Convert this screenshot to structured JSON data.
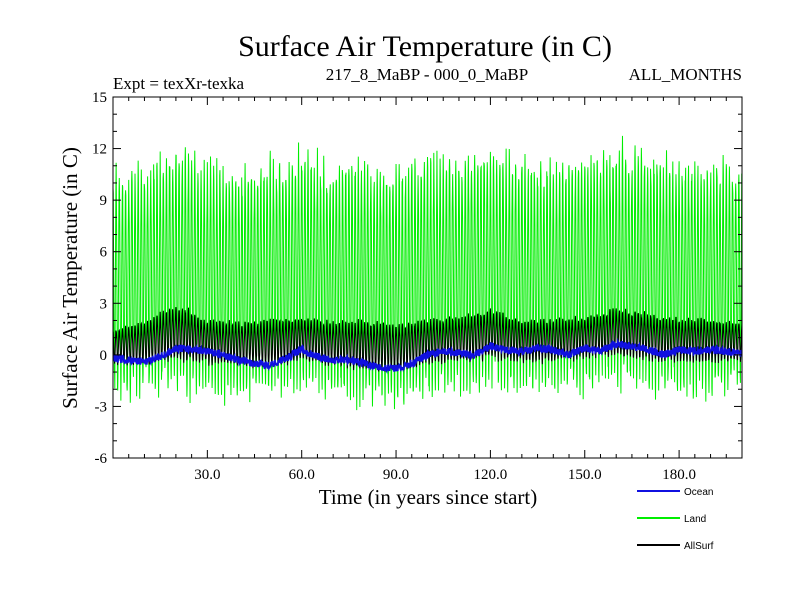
{
  "chart_data": {
    "type": "line",
    "title": "Surface Air Temperature (in C)",
    "subtitle_left": "Expt = texXr-texka",
    "subtitle_center": "217_8_MaBP - 000_0_MaBP",
    "subtitle_right": "ALL_MONTHS",
    "xlabel": "Time (in years since start)",
    "ylabel": "Surface Air Temperature (in C)",
    "xlim": [
      0,
      200
    ],
    "ylim": [
      -6,
      15
    ],
    "x_ticks": [
      30,
      60,
      90,
      120,
      150,
      180
    ],
    "x_tick_labels": [
      "30.0",
      "60.0",
      "90.0",
      "120.0",
      "150.0",
      "180.0"
    ],
    "y_ticks": [
      -6,
      -3,
      0,
      3,
      6,
      9,
      12,
      15
    ],
    "y_tick_labels": [
      "-6",
      "-3",
      "0",
      "3",
      "6",
      "9",
      "12",
      "15"
    ],
    "legend": {
      "position": "bottom-right",
      "entries": [
        {
          "name": "Ocean",
          "color": "#1010e0"
        },
        {
          "name": "Land",
          "color": "#00ee00"
        },
        {
          "name": "AllSurf",
          "color": "#000000"
        }
      ]
    },
    "series": [
      {
        "name": "Land",
        "color": "#00ee00",
        "description": "monthly series, seasonal cycle",
        "x_annual": [
          0,
          10,
          20,
          30,
          40,
          50,
          60,
          70,
          80,
          90,
          100,
          110,
          120,
          130,
          140,
          150,
          160,
          170,
          180,
          190,
          200
        ],
        "annual_max": [
          10.5,
          11.0,
          12.0,
          11.2,
          10.8,
          11.3,
          11.8,
          11.0,
          11.4,
          10.9,
          11.6,
          11.5,
          12.0,
          11.2,
          11.0,
          11.4,
          12.0,
          11.8,
          11.3,
          11.2,
          10.8
        ],
        "annual_min": [
          -2.2,
          -2.5,
          -2.0,
          -2.4,
          -2.6,
          -2.3,
          -2.0,
          -2.4,
          -2.8,
          -3.1,
          -2.5,
          -2.1,
          -2.0,
          -2.3,
          -2.2,
          -1.8,
          -1.7,
          -2.0,
          -2.2,
          -2.4,
          -2.0
        ]
      },
      {
        "name": "AllSurf",
        "color": "#000000",
        "description": "monthly series, seasonal cycle",
        "x_annual": [
          0,
          10,
          20,
          30,
          40,
          50,
          60,
          70,
          80,
          90,
          100,
          110,
          120,
          130,
          140,
          150,
          160,
          170,
          180,
          190,
          200
        ],
        "annual_max": [
          1.5,
          1.9,
          2.9,
          2.1,
          1.9,
          2.1,
          2.2,
          1.9,
          2.0,
          1.8,
          2.1,
          2.2,
          2.6,
          2.0,
          2.1,
          2.2,
          2.7,
          2.4,
          2.1,
          2.1,
          1.9
        ],
        "annual_min": [
          -0.5,
          -0.6,
          -0.3,
          -0.5,
          -0.6,
          -0.7,
          -0.3,
          -0.6,
          -0.9,
          -1.0,
          -0.6,
          -0.4,
          -0.2,
          -0.5,
          -0.4,
          -0.2,
          -0.1,
          -0.3,
          -0.4,
          -0.5,
          -0.3
        ]
      },
      {
        "name": "Ocean",
        "color": "#1010e0",
        "description": "monthly series",
        "x": [
          0,
          5,
          10,
          15,
          20,
          25,
          30,
          35,
          40,
          45,
          50,
          55,
          60,
          65,
          70,
          75,
          80,
          85,
          90,
          95,
          100,
          105,
          110,
          115,
          120,
          125,
          130,
          135,
          140,
          145,
          150,
          155,
          160,
          165,
          170,
          175,
          180,
          185,
          190,
          195,
          200
        ],
        "y": [
          -0.2,
          -0.3,
          -0.4,
          -0.1,
          0.4,
          0.3,
          0.2,
          0.0,
          -0.3,
          -0.5,
          -0.6,
          -0.2,
          0.3,
          -0.1,
          -0.3,
          -0.3,
          -0.5,
          -0.7,
          -0.8,
          -0.5,
          0.0,
          0.2,
          0.1,
          0.0,
          0.5,
          0.3,
          0.2,
          0.4,
          0.3,
          0.0,
          0.4,
          0.2,
          0.6,
          0.5,
          0.3,
          0.0,
          0.3,
          0.2,
          0.3,
          0.2,
          0.1
        ]
      }
    ]
  }
}
